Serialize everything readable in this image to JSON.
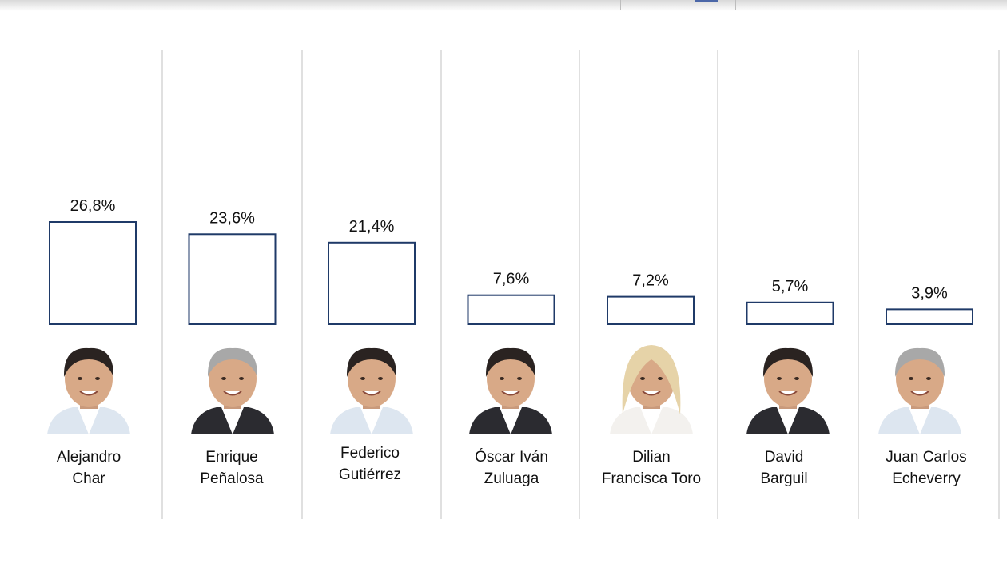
{
  "chart_data": {
    "type": "bar",
    "categories": [
      "Alejandro Char",
      "Enrique Peñalosa",
      "Federico Gutiérrez",
      "Óscar Iván Zuluaga",
      "Dilian Francisca Toro",
      "David Barguil",
      "Juan Carlos Echeverry"
    ],
    "category_lines": [
      [
        "Alejandro",
        "Char"
      ],
      [
        "Enrique",
        "Peñalosa"
      ],
      [
        "Federico",
        "Gutiérrez"
      ],
      [
        "Óscar Iván",
        "Zuluaga"
      ],
      [
        "Dilian",
        "Francisca Toro"
      ],
      [
        "David",
        "Barguil"
      ],
      [
        "Juan Carlos",
        "Echeverry"
      ]
    ],
    "values": [
      26.8,
      23.6,
      21.4,
      7.6,
      7.2,
      5.7,
      3.9
    ],
    "value_labels": [
      "26,8%",
      "23,6%",
      "21,4%",
      "7,6%",
      "7,2%",
      "5,7%",
      "3,9%"
    ],
    "unit": "%",
    "ylim": [
      0,
      30
    ],
    "grid": false,
    "bar_style": "outline",
    "photos": [
      "candidate-photo",
      "candidate-photo",
      "candidate-photo",
      "candidate-photo",
      "candidate-photo",
      "candidate-photo",
      "candidate-photo"
    ]
  },
  "colors": {
    "bar_stroke": "#1f3a68",
    "bar_fill": "#ffffff",
    "divider": "#d6d6d6",
    "text": "#111111"
  }
}
